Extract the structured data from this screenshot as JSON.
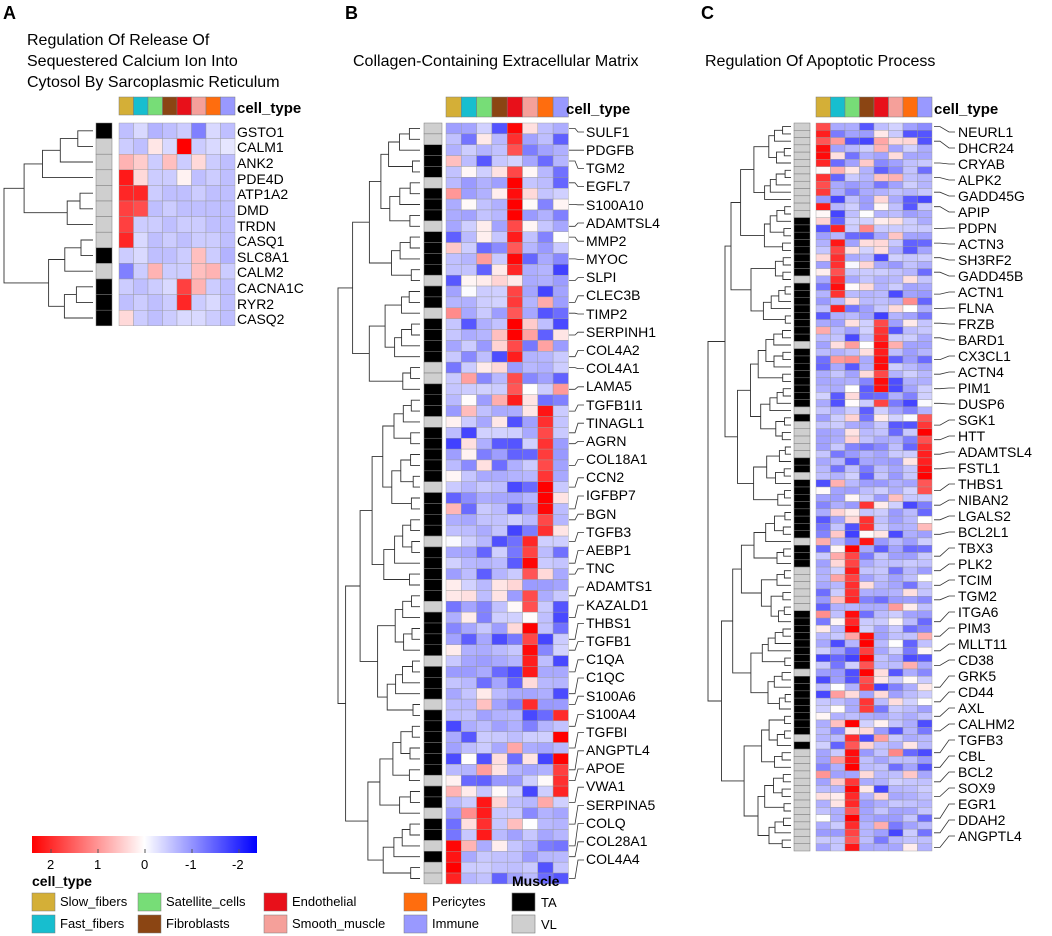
{
  "chart_data": {
    "type": "heatmap",
    "panels": [
      {
        "panel_label": "A",
        "title_lines": [
          "Regulation Of Release Of",
          "Sequestered Calcium Ion Into",
          "Cytosol By Sarcoplasmic Reticulum"
        ],
        "column_header": "cell_type",
        "genes": [
          "GSTO1",
          "CALM1",
          "ANK2",
          "PDE4D",
          "ATP1A2",
          "DMD",
          "TRDN",
          "CASQ1",
          "SLC8A1",
          "CALM2",
          "CACNA1C",
          "RYR2",
          "CASQ2"
        ],
        "muscle": [
          "TA",
          "VL",
          "VL",
          "VL",
          "VL",
          "VL",
          "VL",
          "VL",
          "TA",
          "VL",
          "TA",
          "TA",
          "TA"
        ],
        "values": [
          [
            -0.5,
            -0.3,
            -0.6,
            -0.5,
            -0.4,
            -1.0,
            -0.3,
            -0.5
          ],
          [
            -0.4,
            -0.5,
            0.2,
            -0.3,
            2.0,
            -0.4,
            -0.3,
            -0.2
          ],
          [
            0.6,
            0.4,
            -0.4,
            0.5,
            -0.4,
            0.3,
            -0.4,
            -0.5
          ],
          [
            1.8,
            0.3,
            -0.4,
            -0.4,
            0.1,
            -0.5,
            -0.4,
            -0.5
          ],
          [
            1.7,
            1.7,
            -0.4,
            -0.5,
            -0.5,
            -0.4,
            -0.5,
            -0.5
          ],
          [
            1.5,
            1.4,
            -0.5,
            -0.4,
            -0.5,
            -0.5,
            -0.5,
            -0.5
          ],
          [
            1.5,
            -0.4,
            -0.4,
            -0.5,
            -0.4,
            -0.4,
            -0.5,
            -0.5
          ],
          [
            1.7,
            -0.3,
            -0.5,
            -0.4,
            -0.5,
            -0.4,
            -0.4,
            -0.5
          ],
          [
            -0.4,
            -0.3,
            -0.5,
            -0.5,
            -0.4,
            0.5,
            -0.4,
            -0.6
          ],
          [
            -1.0,
            -0.4,
            0.6,
            -0.4,
            -0.4,
            0.5,
            0.6,
            -0.4
          ],
          [
            -0.4,
            -0.5,
            -0.4,
            -0.3,
            1.5,
            0.6,
            -0.4,
            -0.5
          ],
          [
            -0.5,
            -0.4,
            -0.5,
            -0.4,
            1.7,
            -0.4,
            -0.3,
            -0.5
          ],
          [
            0.3,
            -0.4,
            -0.5,
            -0.4,
            -0.3,
            -0.3,
            -0.4,
            -0.5
          ]
        ]
      },
      {
        "panel_label": "B",
        "title_lines": [
          "Collagen-Containing Extracellular Matrix"
        ],
        "column_header": "cell_type",
        "genes": [
          "SULF1",
          "PDGFB",
          "TGM2",
          "EGFL7",
          "S100A10",
          "ADAMTSL4",
          "MMP2",
          "MYOC",
          "SLPI",
          "CLEC3B",
          "TIMP2",
          "SERPINH1",
          "COL4A2",
          "COL4A1",
          "LAMA5",
          "TGFB1I1",
          "TINAGL1",
          "AGRN",
          "COL18A1",
          "CCN2",
          "IGFBP7",
          "BGN",
          "TGFB3",
          "AEBP1",
          "TNC",
          "ADAMTS1",
          "KAZALD1",
          "THBS1",
          "TGFB1",
          "C1QA",
          "C1QC",
          "S100A6",
          "S100A4",
          "TGFBI",
          "ANGPTL4",
          "APOE",
          "VWA1",
          "SERPINA5",
          "COLQ",
          "COL28A1",
          "COL4A4"
        ],
        "row_count": 70,
        "muscle_vl_rows": [
          0,
          1,
          5,
          9,
          14,
          17,
          22,
          23,
          27,
          33,
          38,
          44,
          49,
          53,
          60,
          63,
          66,
          68,
          69
        ]
      },
      {
        "panel_label": "C",
        "title_lines": [
          "Regulation Of Apoptotic Process"
        ],
        "column_header": "cell_type",
        "genes": [
          "NEURL1",
          "DHCR24",
          "CRYAB",
          "ALPK2",
          "GADD45G",
          "APIP",
          "PDPN",
          "ACTN3",
          "SH3RF2",
          "GADD45B",
          "ACTN1",
          "FLNA",
          "FRZB",
          "BARD1",
          "CX3CL1",
          "ACTN4",
          "PIM1",
          "DUSP6",
          "SGK1",
          "HTT",
          "ADAMTSL4",
          "FSTL1",
          "THBS1",
          "NIBAN2",
          "LGALS2",
          "BCL2L1",
          "TBX3",
          "PLK2",
          "TCIM",
          "TGM2",
          "ITGA6",
          "PIM3",
          "MLLT11",
          "CD38",
          "GRK5",
          "CD44",
          "AXL",
          "CALHM2",
          "TGFB3",
          "CBL",
          "BCL2",
          "SOX9",
          "EGR1",
          "DDAH2",
          "ANGPTL4"
        ],
        "row_count": 100
      }
    ],
    "cell_types": [
      "Slow_fibers",
      "Fast_fibers",
      "Satellite_cells",
      "Fibroblasts",
      "Endothelial",
      "Smooth_muscle",
      "Pericytes",
      "Immune"
    ],
    "cell_type_colors": [
      "#D4AF37",
      "#17BECF",
      "#77DD77",
      "#8B4513",
      "#E8101A",
      "#F5A09A",
      "#FF6D0E",
      "#9999FF"
    ],
    "muscle_levels": [
      "TA",
      "VL"
    ],
    "muscle_colors": [
      "#000000",
      "#CFCFCF"
    ],
    "color_scale": {
      "ticks": [
        "2",
        "1",
        "0",
        "-1",
        "-2"
      ],
      "range": [
        2,
        -2
      ],
      "colors": [
        "#FF0000",
        "#FFFFFF",
        "#0000FF"
      ]
    }
  },
  "legend": {
    "cell_type_title": "cell_type",
    "muscle_title": "Muscle"
  }
}
